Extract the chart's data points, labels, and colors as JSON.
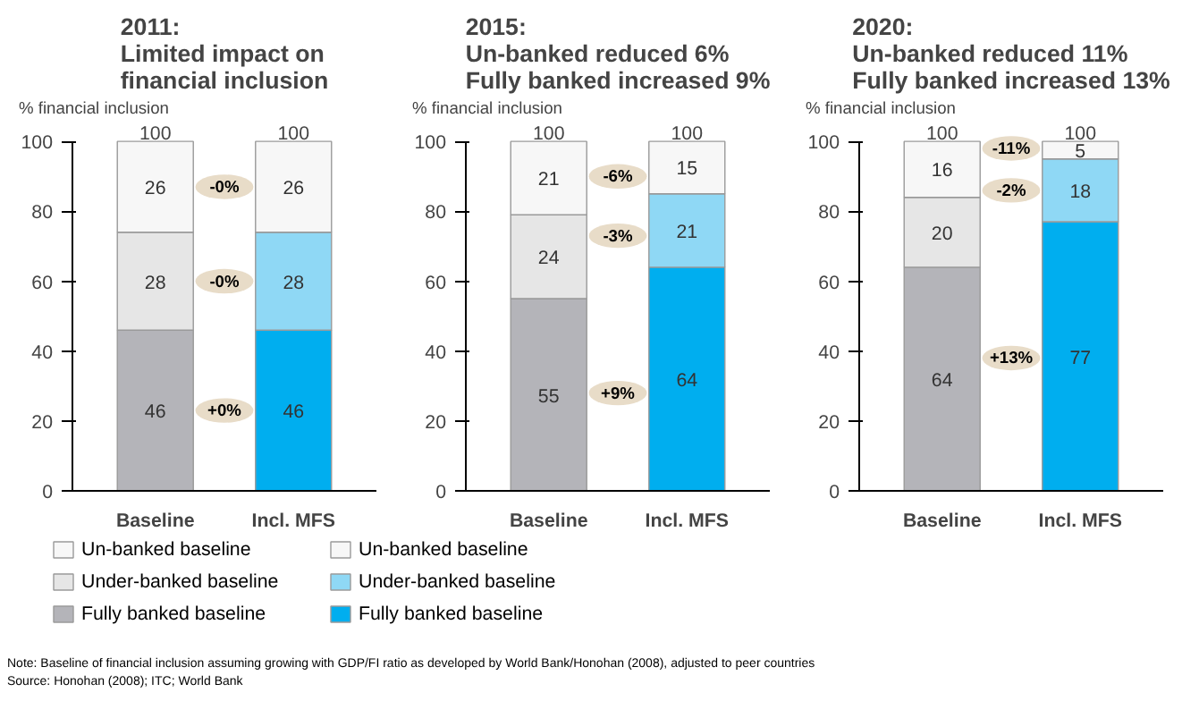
{
  "chart_data": [
    {
      "type": "bar",
      "stacked": true,
      "title": "2011:\nLimited impact on\nfinancial inclusion",
      "ylabel": "% financial inclusion",
      "categories": [
        "Baseline",
        "Incl. MFS"
      ],
      "ylim": [
        0,
        100
      ],
      "yticks": [
        0,
        20,
        40,
        60,
        80,
        100
      ],
      "grid": false,
      "data_labels": true,
      "totals": [
        "100",
        "100"
      ],
      "legend": "bottom",
      "series": [
        {
          "name": "Fully banked baseline",
          "color": "#b4b4b9",
          "values": [
            46,
            null
          ]
        },
        {
          "name": "Under-banked baseline",
          "color": "#e6e6e6",
          "values": [
            28,
            null
          ]
        },
        {
          "name": "Un-banked baseline",
          "color": "#f7f7f7",
          "values": [
            26,
            null
          ]
        },
        {
          "name": "Fully banked baseline",
          "color": "#00aeef",
          "values": [
            null,
            46
          ]
        },
        {
          "name": "Under-banked baseline",
          "color": "#8fd8f5",
          "values": [
            null,
            28
          ]
        },
        {
          "name": "Un-banked baseline",
          "color": "#f7f7f7",
          "values": [
            null,
            26
          ]
        }
      ],
      "annotations": [
        {
          "text": "+0%",
          "y": 23
        },
        {
          "text": "-0%",
          "y": 60
        },
        {
          "text": "-0%",
          "y": 87
        },
        "Note: Baseline of financial inclusion assuming growing with GDP/FI ratio as developed by World Bank/Honohan (2008), adjusted to peer countries",
        "Source: Honohan (2008); ITC; World Bank"
      ]
    },
    {
      "type": "bar",
      "stacked": true,
      "title": "2015:\nUn-banked reduced 6%\nFully banked increased 9%",
      "ylabel": "% financial inclusion",
      "categories": [
        "Baseline",
        "Incl. MFS"
      ],
      "ylim": [
        0,
        100
      ],
      "yticks": [
        0,
        20,
        40,
        60,
        80,
        100
      ],
      "grid": false,
      "data_labels": true,
      "totals": [
        "100",
        "100"
      ],
      "series": [
        {
          "color": "#b4b4b9",
          "values": [
            55,
            null
          ]
        },
        {
          "color": "#e6e6e6",
          "values": [
            24,
            null
          ]
        },
        {
          "color": "#f7f7f7",
          "values": [
            21,
            null
          ]
        },
        {
          "color": "#00aeef",
          "values": [
            null,
            64
          ]
        },
        {
          "color": "#8fd8f5",
          "values": [
            null,
            21
          ]
        },
        {
          "color": "#f7f7f7",
          "values": [
            null,
            15
          ]
        }
      ],
      "annotations": [
        {
          "text": "+9%",
          "y": 28
        },
        {
          "text": "-3%",
          "y": 73
        },
        {
          "text": "-6%",
          "y": 90
        }
      ]
    },
    {
      "type": "bar",
      "stacked": true,
      "title": "2020:\nUn-banked reduced 11%\nFully banked increased 13%",
      "ylabel": "% financial inclusion",
      "categories": [
        "Baseline",
        "Incl. MFS"
      ],
      "ylim": [
        0,
        100
      ],
      "yticks": [
        0,
        20,
        40,
        60,
        80,
        100
      ],
      "grid": false,
      "data_labels": true,
      "totals": [
        "100",
        "100"
      ],
      "series": [
        {
          "color": "#b4b4b9",
          "values": [
            64,
            null
          ]
        },
        {
          "color": "#e6e6e6",
          "values": [
            20,
            null
          ]
        },
        {
          "color": "#f7f7f7",
          "values": [
            16,
            null
          ]
        },
        {
          "color": "#00aeef",
          "values": [
            null,
            77
          ]
        },
        {
          "color": "#8fd8f5",
          "values": [
            null,
            18
          ]
        },
        {
          "color": "#f7f7f7",
          "values": [
            null,
            5
          ]
        }
      ],
      "annotations": [
        {
          "text": "+13%",
          "y": 38
        },
        {
          "text": "-2%",
          "y": 86
        },
        {
          "text": "-11%",
          "y": 98
        }
      ]
    }
  ]
}
